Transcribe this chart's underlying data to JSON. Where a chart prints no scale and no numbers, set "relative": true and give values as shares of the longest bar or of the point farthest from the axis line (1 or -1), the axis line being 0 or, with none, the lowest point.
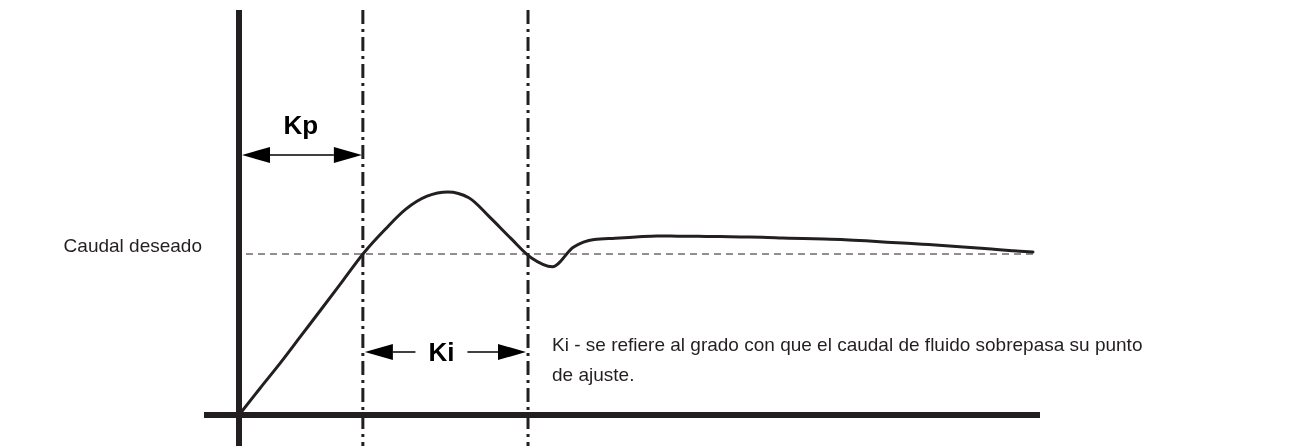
{
  "chart_data": {
    "type": "line",
    "relative": true,
    "categories": [
      null,
      null,
      null,
      null,
      null,
      null,
      null,
      null,
      null,
      null,
      null,
      null,
      null,
      null,
      null,
      null,
      null,
      null,
      null,
      null,
      null,
      null,
      null,
      null,
      null,
      null,
      null,
      null,
      null,
      null,
      null,
      null,
      null,
      null,
      null,
      null,
      null,
      null,
      null
    ],
    "series": [
      {
        "color": "#231f20",
        "values": [
          0,
          0.119,
          0.236,
          0.359,
          0.482,
          0.606,
          0.73,
          0.833,
          0.924,
          0.981,
          1,
          0.974,
          0.887,
          0.793,
          0.704,
          0.665,
          0.752,
          0.787,
          0.793,
          0.798,
          0.803,
          0.802,
          0.801,
          0.8,
          0.798,
          0.797,
          0.794,
          0.791,
          0.789,
          0.786,
          0.781,
          0.775,
          0.77,
          0.764,
          0.758,
          0.751,
          0.744,
          0.737,
          0.731
        ]
      }
    ],
    "ref_lines": [
      {
        "axis": "y",
        "value": 0.722,
        "label": "Caudal deseado",
        "line_style": "dashed",
        "color": "#231f20"
      }
    ],
    "annotations": [
      "Kp",
      "Ki",
      "Ki - se refiere al grado con que el caudal de fluido sobrepasa su punto de ajuste."
    ]
  }
}
